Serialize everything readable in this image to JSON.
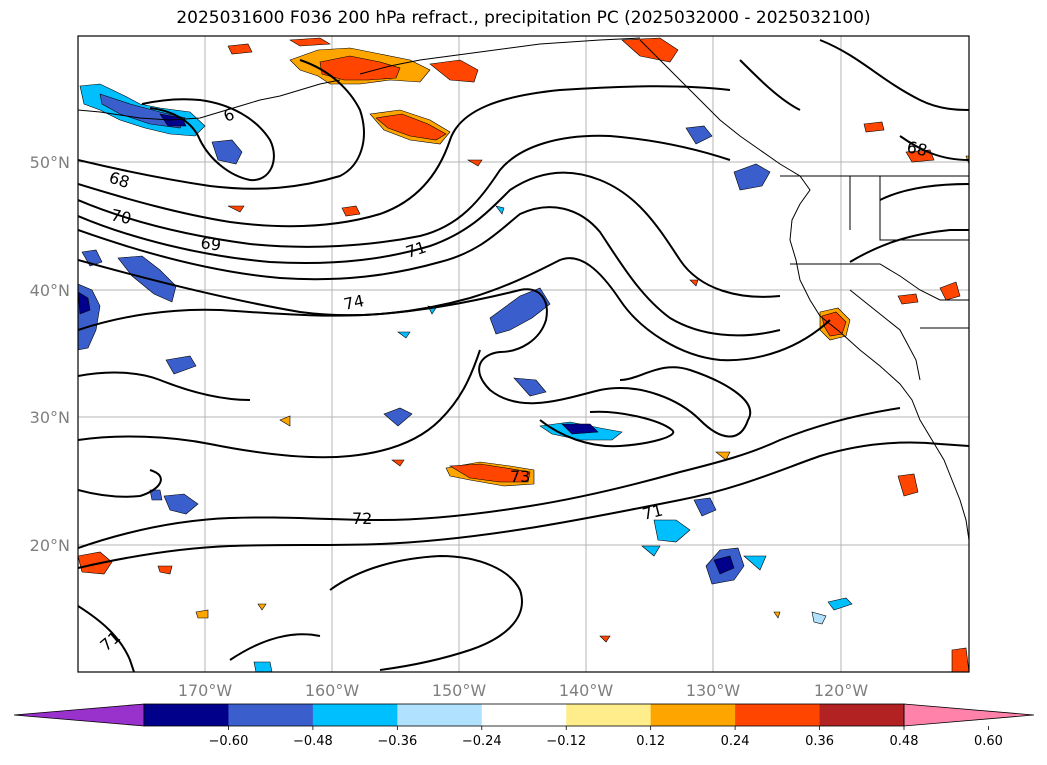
{
  "title": "2025031600 F036 200 hPa refract., precipitation PC (2025032000 - 2025032100)",
  "lat_labels": [
    "50°N",
    "40°N",
    "30°N",
    "20°N"
  ],
  "lon_labels": [
    "170°W",
    "160°W",
    "150°W",
    "140°W",
    "130°W",
    "120°W"
  ],
  "contour_labels": [
    "68",
    "70",
    "69",
    "71",
    "74",
    "73",
    "72",
    "71",
    "71",
    "68",
    "6"
  ],
  "colorbar": {
    "colors": [
      "#9932cc",
      "#00008b",
      "#3a5fcd",
      "#00bfff",
      "#b0e2ff",
      "#ffffff",
      "#ffec8b",
      "#ffa500",
      "#ff4500",
      "#b22222",
      "#ff82ab"
    ],
    "labels": [
      "−0.60",
      "−0.48",
      "−0.36",
      "−0.24",
      "−0.12",
      "0.12",
      "0.24",
      "0.36",
      "0.48",
      "0.60"
    ]
  }
}
